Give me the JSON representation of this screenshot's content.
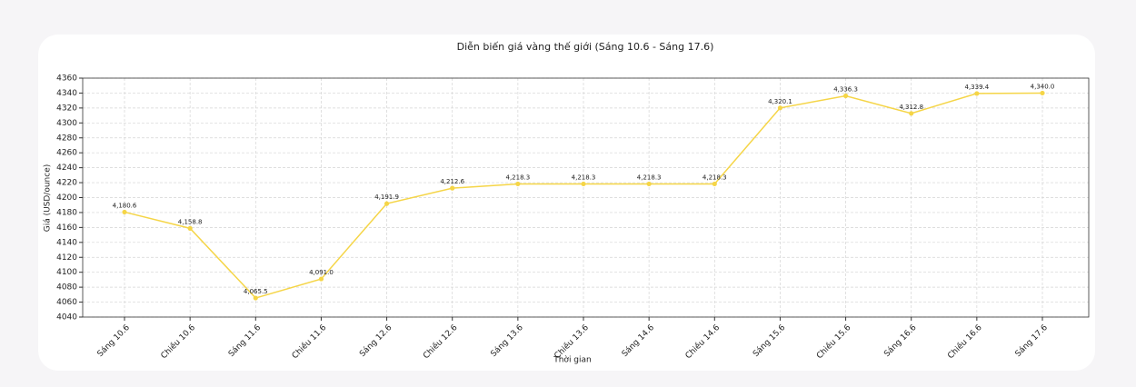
{
  "chart_data": {
    "type": "line",
    "title": "Diễn biến giá vàng thế giới (Sáng 10.6 - Sáng 17.6)",
    "x_label": "Thời gian",
    "y_label": "Giá (USD/ounce)",
    "categories": [
      "Sáng 10.6",
      "Chiều 10.6",
      "Sáng 11.6",
      "Chiều 11.6",
      "Sáng 12.6",
      "Chiều 12.6",
      "Sáng 13.6",
      "Chiều 13.6",
      "Sáng 14.6",
      "Chiều 14.6",
      "Sáng 15.6",
      "Chiều 15.6",
      "Sáng 16.6",
      "Chiều 16.6",
      "Sáng 17.6"
    ],
    "values": [
      4180.6,
      4158.8,
      4065.5,
      4091.0,
      4191.9,
      4212.6,
      4218.3,
      4218.3,
      4218.3,
      4218.3,
      4320.1,
      4336.3,
      4312.8,
      4339.4,
      4340.0
    ],
    "value_labels": [
      "4,180.6",
      "4,158.8",
      "4,065.5",
      "4,091.0",
      "4,191.9",
      "4,212.6",
      "4,218.3",
      "4,218.3",
      "4,218.3",
      "4,218.3",
      "4,320.1",
      "4,336.3",
      "4,312.8",
      "4,339.4",
      "4,340.0"
    ],
    "color": "#f5d547",
    "ylim": [
      4040,
      4360
    ],
    "yticks": [
      4040,
      4060,
      4080,
      4100,
      4120,
      4140,
      4160,
      4180,
      4200,
      4220,
      4240,
      4260,
      4280,
      4300,
      4320,
      4340,
      4360
    ],
    "grid": true
  }
}
